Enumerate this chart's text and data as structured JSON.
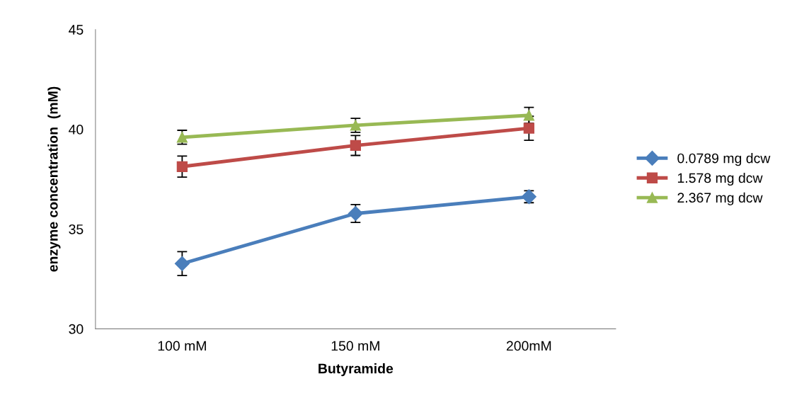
{
  "chart_data": {
    "type": "line",
    "xlabel": "Butyramide",
    "ylabel": "enzyme concentration  (mM)",
    "categories": [
      "100 mM",
      "150 mM",
      "200mM"
    ],
    "series": [
      {
        "name": "0.0789 mg dcw",
        "color": "#4a7ebb",
        "marker": "diamond",
        "values": [
          33.27,
          35.78,
          36.62
        ],
        "errors": [
          0.6,
          0.45,
          0.3
        ]
      },
      {
        "name": "1.578 mg dcw",
        "color": "#be4b48",
        "marker": "square",
        "values": [
          38.13,
          39.19,
          40.05
        ],
        "errors": [
          0.53,
          0.5,
          0.6
        ]
      },
      {
        "name": "2.367 mg dcw",
        "color": "#98b954",
        "marker": "triangle",
        "values": [
          39.6,
          40.2,
          40.7
        ],
        "errors": [
          0.35,
          0.35,
          0.4
        ]
      }
    ],
    "ylim": [
      30,
      45
    ],
    "yticks": [
      30,
      35,
      40,
      45
    ],
    "grid": false,
    "legend": "right",
    "line_style": "solid"
  }
}
